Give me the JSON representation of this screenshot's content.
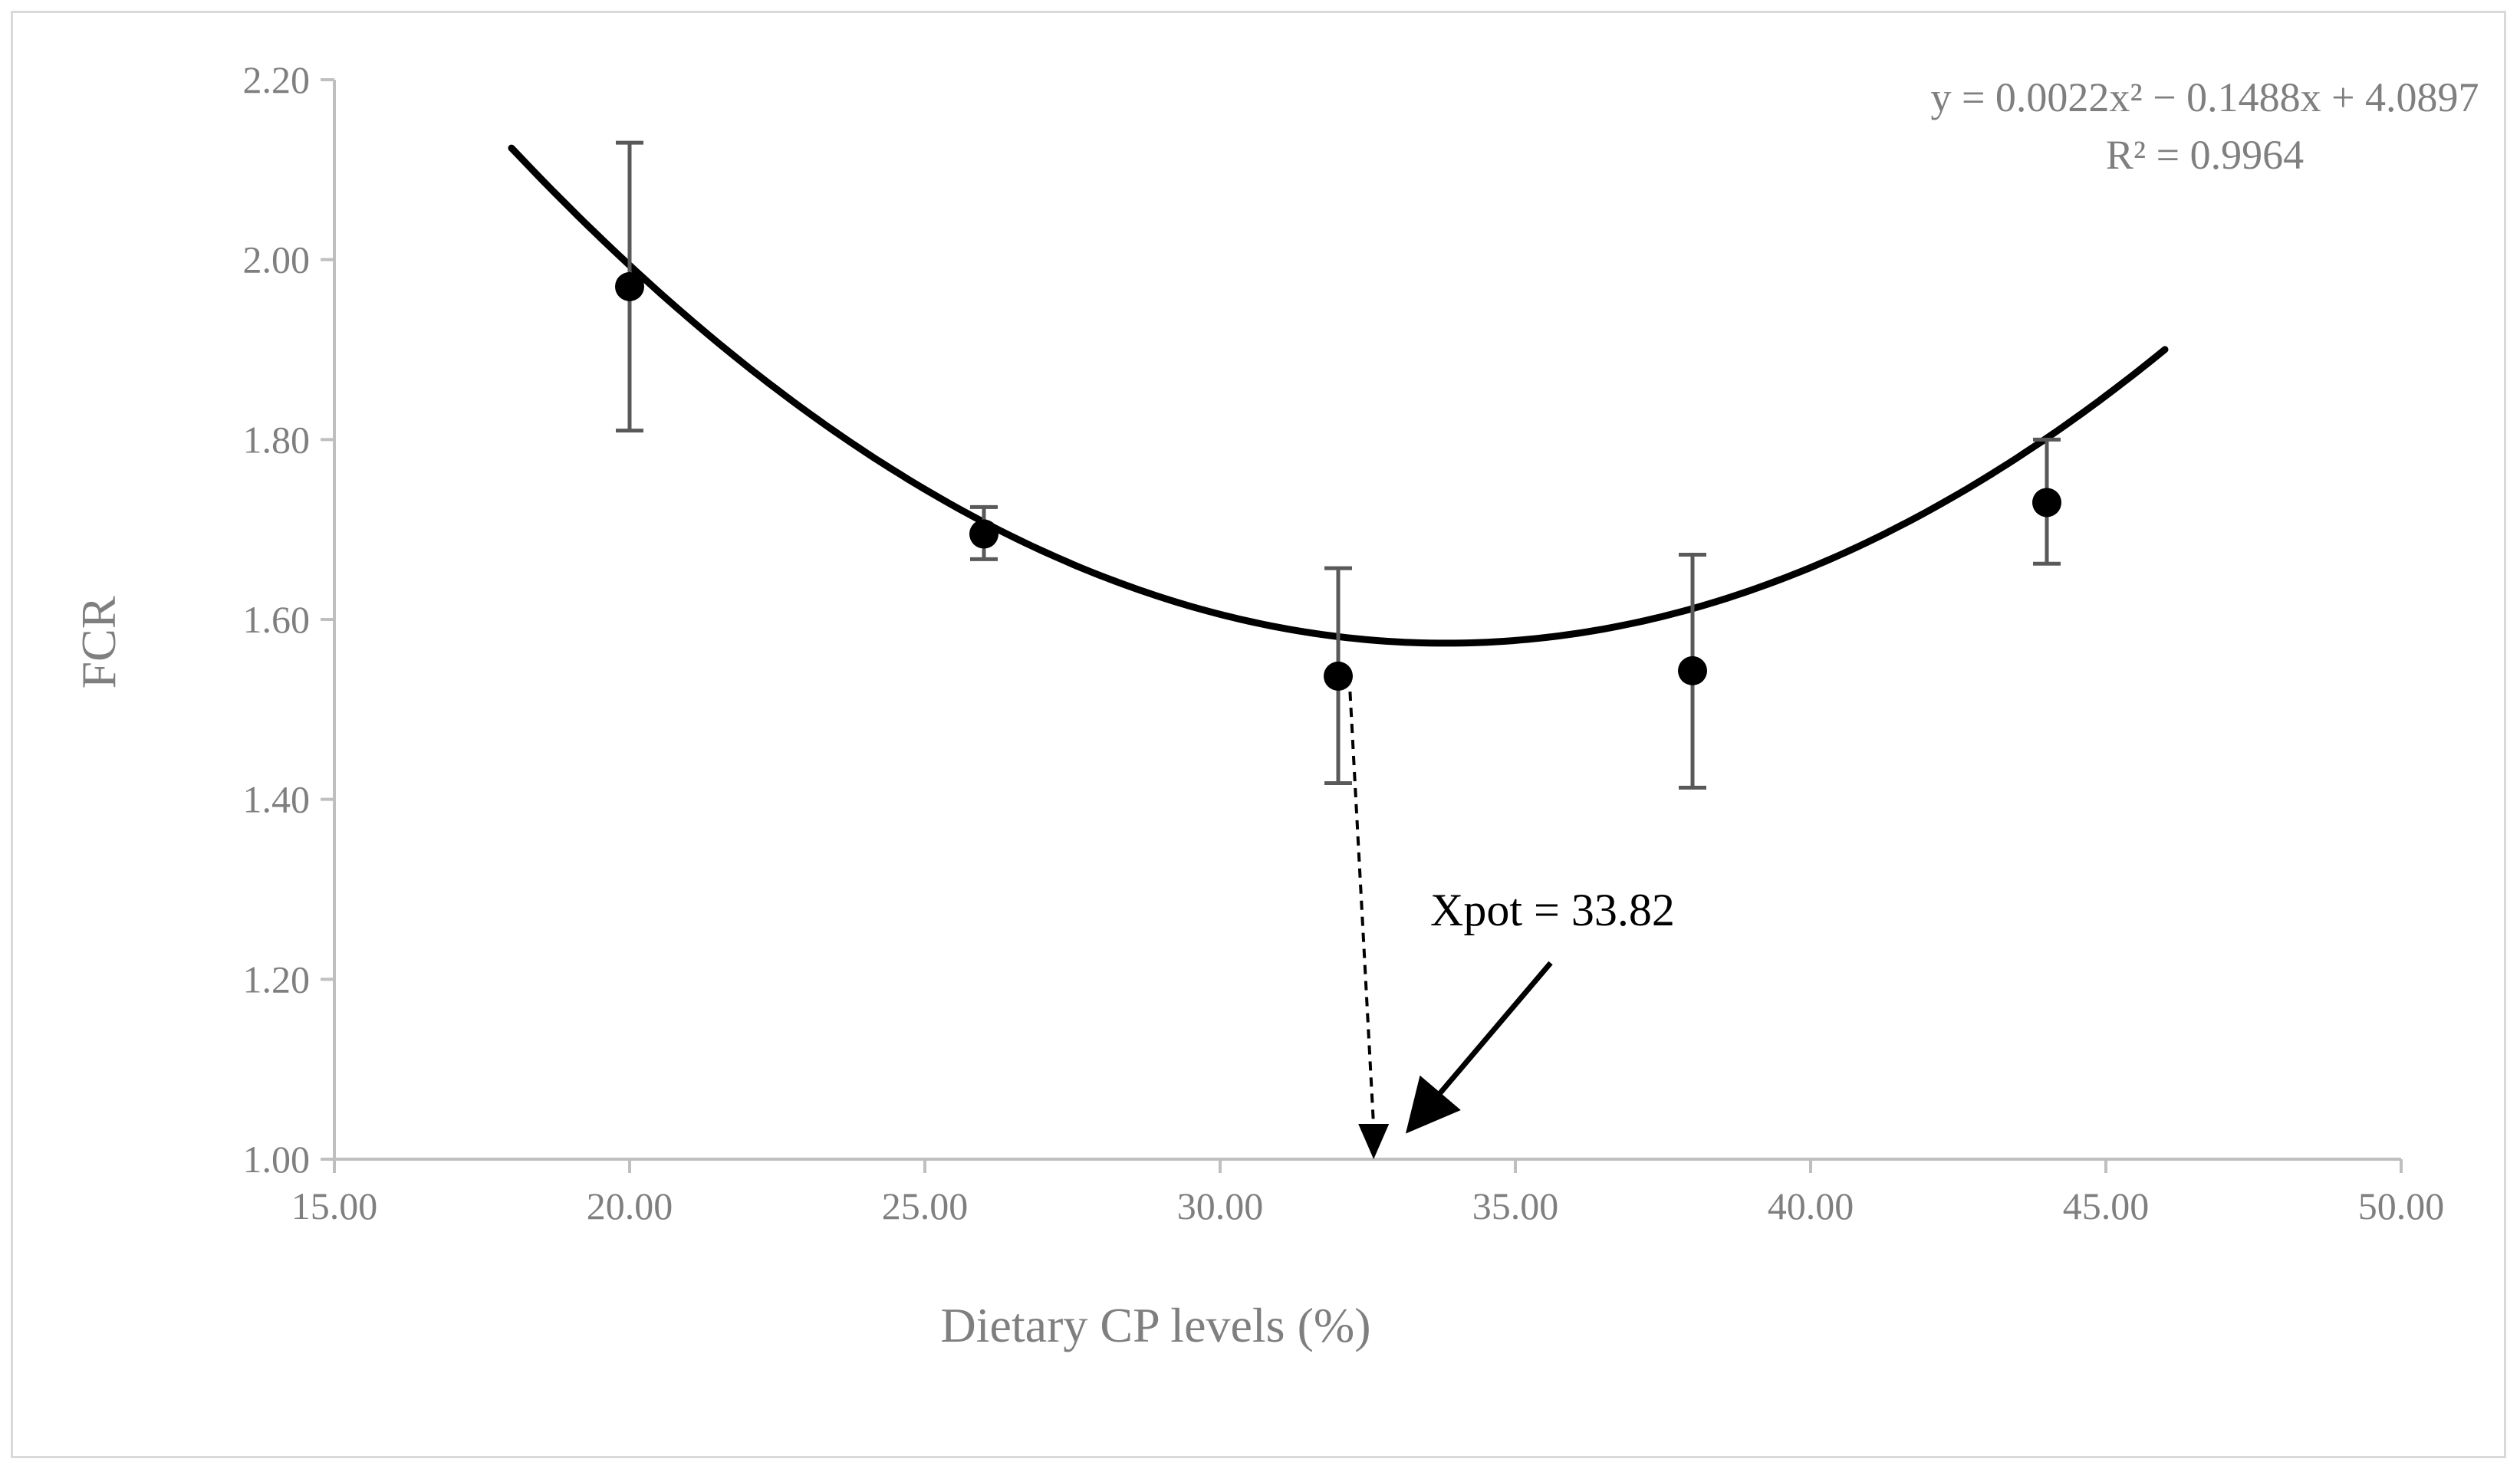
{
  "chart_data": {
    "type": "scatter",
    "title": "",
    "xlabel": "Dietary CP levels (%)",
    "ylabel": "FCR",
    "xlim": [
      15,
      50
    ],
    "ylim": [
      1.0,
      2.2
    ],
    "x_ticks": [
      "15.00",
      "20.00",
      "25.00",
      "30.00",
      "35.00",
      "40.00",
      "45.00",
      "50.00"
    ],
    "y_ticks": [
      "1.00",
      "1.20",
      "1.40",
      "1.60",
      "1.80",
      "2.00",
      "2.20"
    ],
    "series": [
      {
        "name": "FCR",
        "x": [
          20,
          26,
          32,
          38,
          44
        ],
        "y": [
          1.97,
          1.695,
          1.537,
          1.543,
          1.73
        ],
        "error_low": [
          1.81,
          1.667,
          1.418,
          1.413,
          1.662
        ],
        "error_high": [
          2.13,
          1.725,
          1.657,
          1.672,
          1.8
        ]
      }
    ],
    "trendline": {
      "type": "polynomial",
      "order": 2,
      "a": 0.0022,
      "b": -0.1488,
      "c": 4.0897,
      "x_range": [
        18,
        46
      ],
      "equation_label": "y = 0.0022x² − 0.1488x + 4.0897",
      "r2_label": "R² = 0.9964"
    },
    "annotation": {
      "text": "Xpot = 33.82",
      "drop_from": {
        "x": 32.2,
        "y": 1.53
      },
      "drop_to": {
        "x": 32.6,
        "y": 1.0
      }
    },
    "grid": false,
    "legend": "none"
  },
  "colors": {
    "axis": "#bfbfbf",
    "text": "#7f7f7f",
    "series": "#000000",
    "error_bar": "#595959"
  }
}
